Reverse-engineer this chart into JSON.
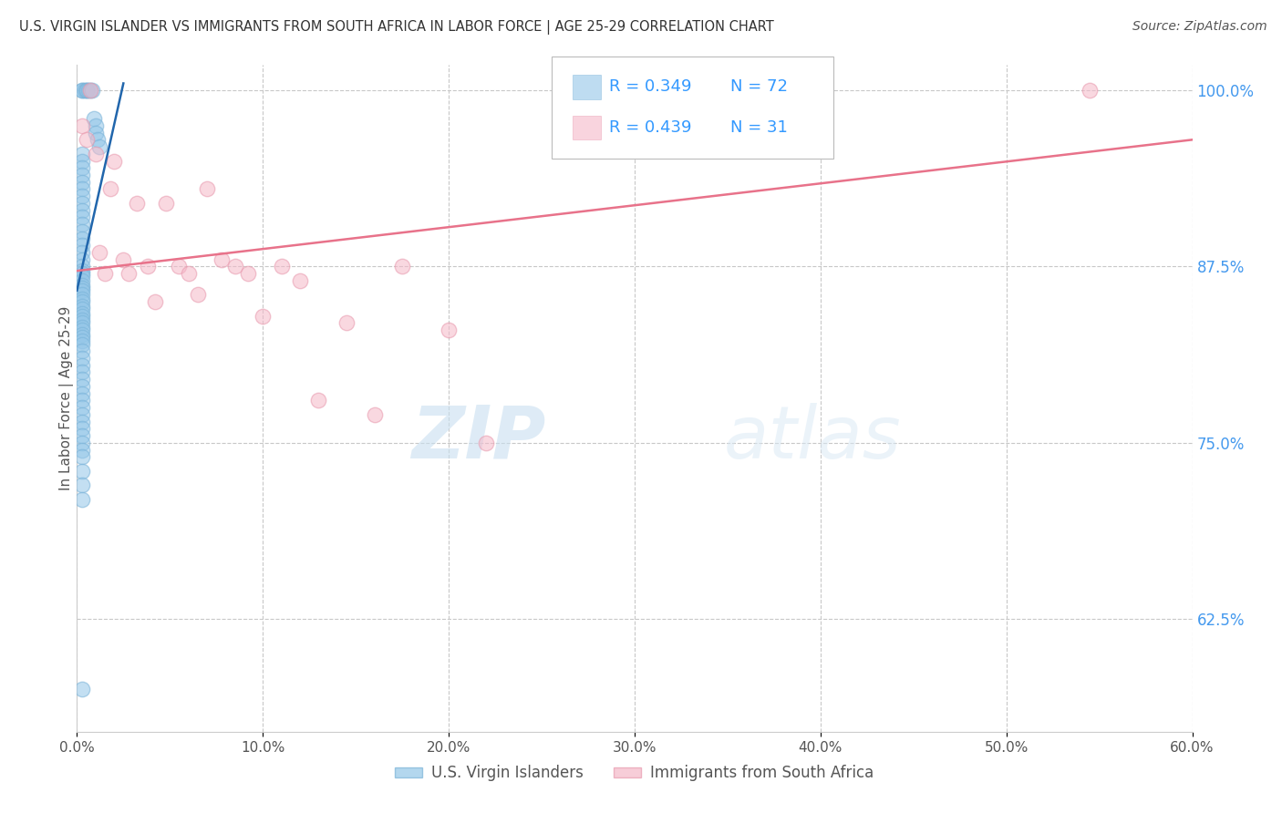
{
  "title": "U.S. VIRGIN ISLANDER VS IMMIGRANTS FROM SOUTH AFRICA IN LABOR FORCE | AGE 25-29 CORRELATION CHART",
  "source": "Source: ZipAtlas.com",
  "ylabel": "In Labor Force | Age 25-29",
  "xmin": 0.0,
  "xmax": 0.6,
  "ymin": 0.545,
  "ymax": 1.018,
  "yticks": [
    0.625,
    0.75,
    0.875,
    1.0
  ],
  "ytick_labels": [
    "62.5%",
    "75.0%",
    "87.5%",
    "100.0%"
  ],
  "xticks": [
    0.0,
    0.1,
    0.2,
    0.3,
    0.4,
    0.5,
    0.6
  ],
  "xtick_labels": [
    "0.0%",
    "10.0%",
    "20.0%",
    "30.0%",
    "40.0%",
    "50.0%",
    "60.0%"
  ],
  "blue_color": "#93c6e8",
  "pink_color": "#f5b8c8",
  "blue_edge_color": "#7ab3d8",
  "pink_edge_color": "#e89aae",
  "blue_line_color": "#2166ac",
  "pink_line_color": "#e8728a",
  "blue_R": 0.349,
  "blue_N": 72,
  "pink_R": 0.439,
  "pink_N": 31,
  "legend_label_blue": "U.S. Virgin Islanders",
  "legend_label_pink": "Immigrants from South Africa",
  "blue_scatter_x": [
    0.003,
    0.003,
    0.004,
    0.005,
    0.005,
    0.006,
    0.007,
    0.008,
    0.009,
    0.01,
    0.01,
    0.011,
    0.012,
    0.003,
    0.003,
    0.003,
    0.003,
    0.003,
    0.003,
    0.003,
    0.003,
    0.003,
    0.003,
    0.003,
    0.003,
    0.003,
    0.003,
    0.003,
    0.003,
    0.003,
    0.003,
    0.003,
    0.003,
    0.003,
    0.003,
    0.003,
    0.003,
    0.003,
    0.003,
    0.003,
    0.003,
    0.003,
    0.003,
    0.003,
    0.003,
    0.003,
    0.003,
    0.003,
    0.003,
    0.003,
    0.003,
    0.003,
    0.003,
    0.003,
    0.003,
    0.003,
    0.003,
    0.003,
    0.003,
    0.003,
    0.003,
    0.003,
    0.003,
    0.003,
    0.003,
    0.003,
    0.003,
    0.003,
    0.003,
    0.003,
    0.003,
    0.003
  ],
  "blue_scatter_y": [
    1.0,
    1.0,
    1.0,
    1.0,
    1.0,
    1.0,
    1.0,
    1.0,
    0.98,
    0.975,
    0.97,
    0.965,
    0.96,
    0.955,
    0.95,
    0.945,
    0.94,
    0.935,
    0.93,
    0.925,
    0.92,
    0.915,
    0.91,
    0.905,
    0.9,
    0.895,
    0.89,
    0.885,
    0.88,
    0.875,
    0.872,
    0.87,
    0.868,
    0.865,
    0.862,
    0.86,
    0.858,
    0.855,
    0.852,
    0.85,
    0.847,
    0.845,
    0.842,
    0.84,
    0.837,
    0.835,
    0.832,
    0.83,
    0.827,
    0.825,
    0.822,
    0.82,
    0.815,
    0.81,
    0.805,
    0.8,
    0.795,
    0.79,
    0.785,
    0.78,
    0.775,
    0.77,
    0.765,
    0.76,
    0.755,
    0.75,
    0.745,
    0.74,
    0.73,
    0.72,
    0.71,
    0.575
  ],
  "pink_scatter_x": [
    0.003,
    0.005,
    0.007,
    0.01,
    0.012,
    0.015,
    0.018,
    0.02,
    0.025,
    0.028,
    0.032,
    0.038,
    0.042,
    0.048,
    0.055,
    0.06,
    0.065,
    0.07,
    0.078,
    0.085,
    0.092,
    0.1,
    0.11,
    0.12,
    0.13,
    0.145,
    0.16,
    0.175,
    0.2,
    0.22,
    0.545
  ],
  "pink_scatter_y": [
    0.975,
    0.965,
    1.0,
    0.955,
    0.885,
    0.87,
    0.93,
    0.95,
    0.88,
    0.87,
    0.92,
    0.875,
    0.85,
    0.92,
    0.875,
    0.87,
    0.855,
    0.93,
    0.88,
    0.875,
    0.87,
    0.84,
    0.875,
    0.865,
    0.78,
    0.835,
    0.77,
    0.875,
    0.83,
    0.75,
    1.0
  ],
  "watermark_zip": "ZIP",
  "watermark_atlas": "atlas",
  "background_color": "#ffffff",
  "grid_color": "#c8c8c8",
  "blue_line_x0": 0.0,
  "blue_line_x1": 0.025,
  "blue_line_y0": 0.858,
  "blue_line_y1": 1.005,
  "pink_line_x0": 0.0,
  "pink_line_x1": 0.6,
  "pink_line_y0": 0.872,
  "pink_line_y1": 0.965
}
